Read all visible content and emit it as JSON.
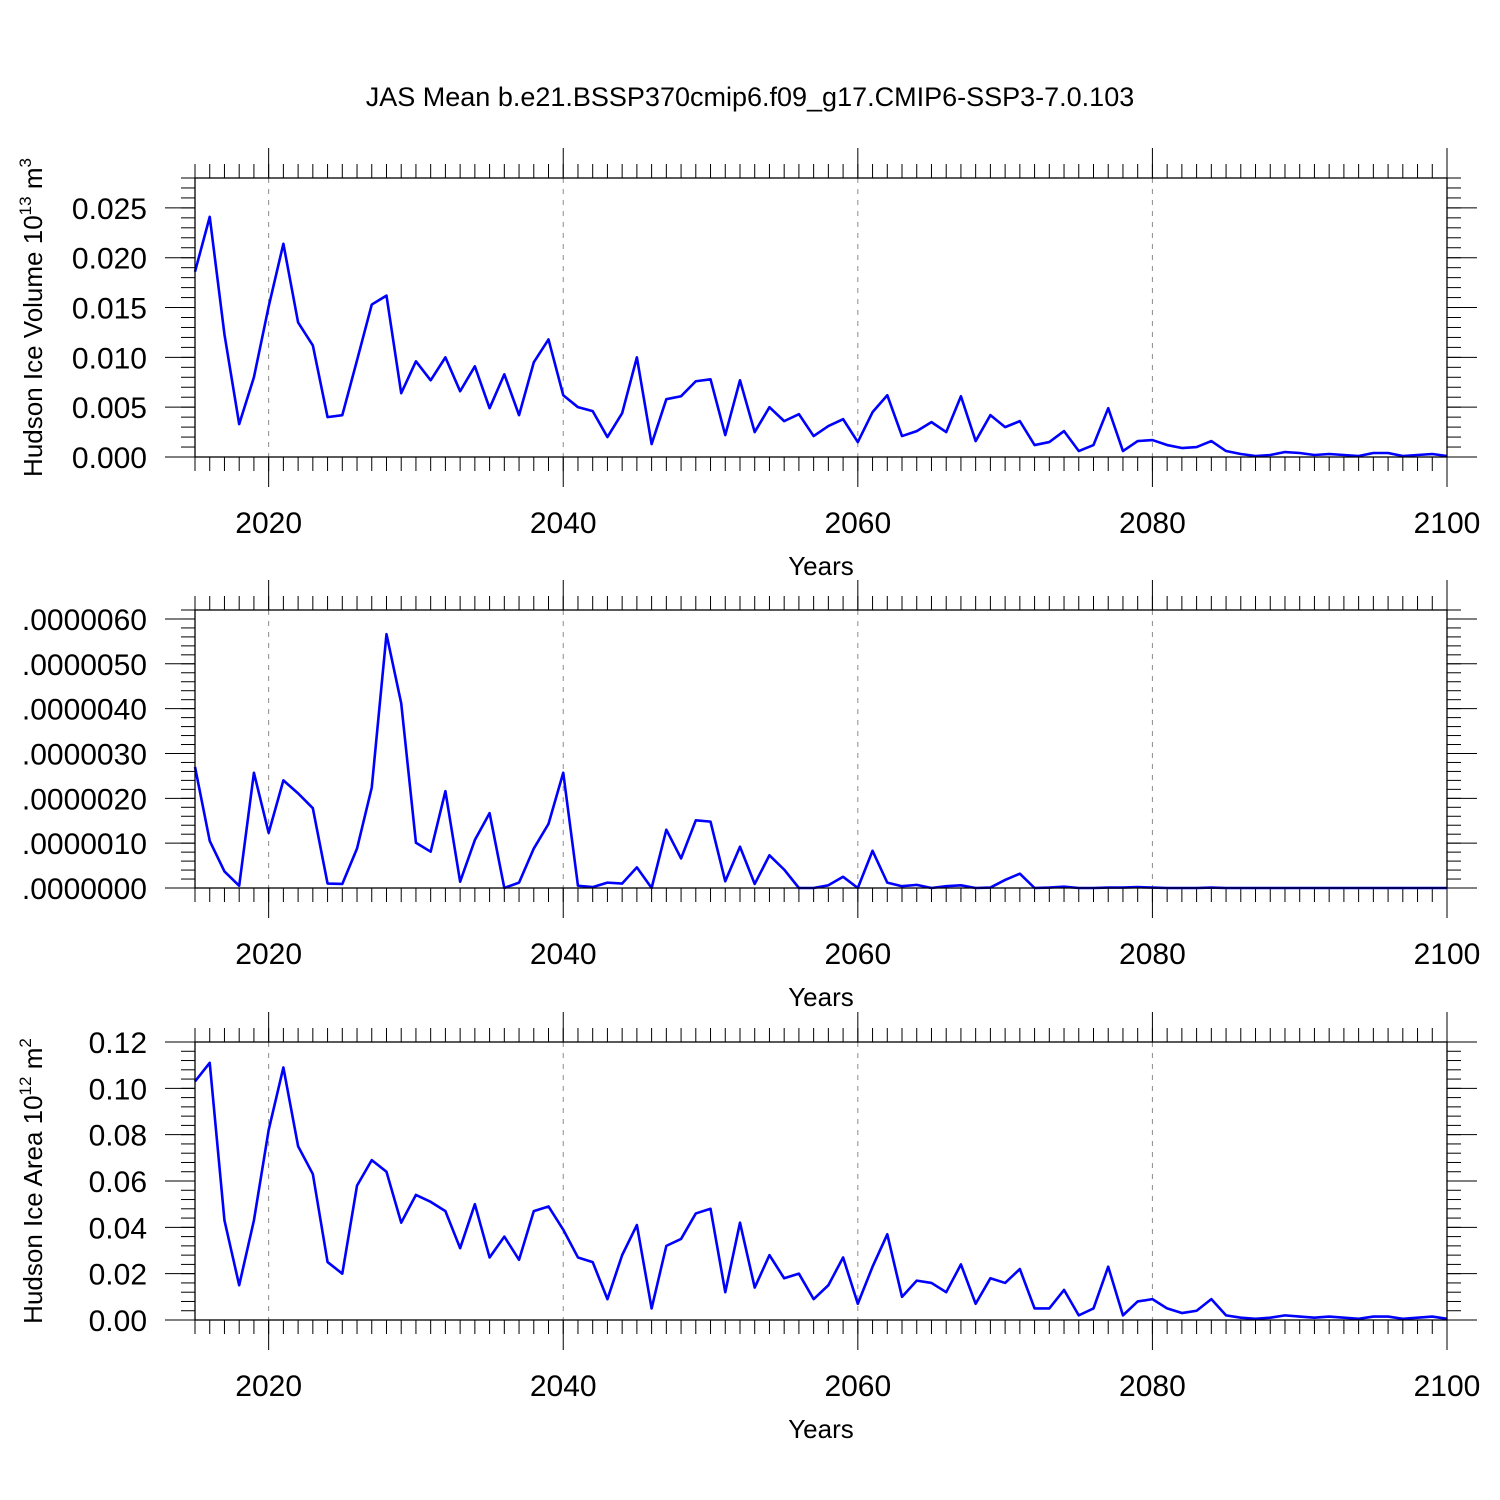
{
  "chart_data": {
    "title": "JAS Mean b.e21.BSSP370cmip6.f09_g17.CMIP6-SSP3-7.0.103",
    "type": "line",
    "line_color": "#0000ff",
    "x": [
      2015,
      2016,
      2017,
      2018,
      2019,
      2020,
      2021,
      2022,
      2023,
      2024,
      2025,
      2026,
      2027,
      2028,
      2029,
      2030,
      2031,
      2032,
      2033,
      2034,
      2035,
      2036,
      2037,
      2038,
      2039,
      2040,
      2041,
      2042,
      2043,
      2044,
      2045,
      2046,
      2047,
      2048,
      2049,
      2050,
      2051,
      2052,
      2053,
      2054,
      2055,
      2056,
      2057,
      2058,
      2059,
      2060,
      2061,
      2062,
      2063,
      2064,
      2065,
      2066,
      2067,
      2068,
      2069,
      2070,
      2071,
      2072,
      2073,
      2074,
      2075,
      2076,
      2077,
      2078,
      2079,
      2080,
      2081,
      2082,
      2083,
      2084,
      2085,
      2086,
      2087,
      2088,
      2089,
      2090,
      2091,
      2092,
      2093,
      2094,
      2095,
      2096,
      2097,
      2098,
      2099,
      2100
    ],
    "panels": [
      {
        "ylabel": "Hudson Ice Volume 10",
        "ylabel_sup": "13",
        "ylabel_unit": " m",
        "ylabel_unit_sup": "3",
        "xlabel": "Years",
        "xlim": [
          2015,
          2100
        ],
        "ylim": [
          0.0,
          0.028
        ],
        "yticks": [
          0.0,
          0.005,
          0.01,
          0.015,
          0.02,
          0.025
        ],
        "yticklabels": [
          "0.000",
          "0.005",
          "0.010",
          "0.015",
          "0.020",
          "0.025"
        ],
        "yminor_step": 0.001,
        "xticks": [
          2020,
          2040,
          2060,
          2080,
          2100
        ],
        "xticklabels": [
          "2020",
          "2040",
          "2060",
          "2080",
          "2100"
        ],
        "xminor_step": 1,
        "grid_x": true,
        "values": [
          0.0186,
          0.0241,
          0.0123,
          0.0033,
          0.008,
          0.0151,
          0.0214,
          0.0135,
          0.0112,
          0.004,
          0.0042,
          0.0097,
          0.0153,
          0.0162,
          0.0064,
          0.0096,
          0.0077,
          0.01,
          0.0066,
          0.0091,
          0.0049,
          0.0083,
          0.0042,
          0.0095,
          0.0118,
          0.0062,
          0.005,
          0.0046,
          0.002,
          0.0044,
          0.01,
          0.0013,
          0.0058,
          0.0061,
          0.0076,
          0.0078,
          0.0022,
          0.0077,
          0.0025,
          0.005,
          0.0036,
          0.0043,
          0.0021,
          0.0031,
          0.0038,
          0.0015,
          0.0045,
          0.0062,
          0.0021,
          0.0026,
          0.0035,
          0.0025,
          0.0061,
          0.0016,
          0.0042,
          0.003,
          0.0036,
          0.0012,
          0.0015,
          0.0026,
          0.0006,
          0.0012,
          0.0049,
          0.0006,
          0.0016,
          0.0017,
          0.0012,
          0.0009,
          0.001,
          0.0016,
          0.0006,
          0.0003,
          0.0001,
          0.0002,
          0.0005,
          0.0004,
          0.0002,
          0.0003,
          0.0002,
          0.0001,
          0.0004,
          0.0004,
          0.0001,
          0.0002,
          0.0003,
          0.0001
        ]
      },
      {
        "ylabel": "",
        "xlabel": "Years",
        "xlim": [
          2015,
          2100
        ],
        "ylim": [
          0.0,
          6.2e-06
        ],
        "yticks": [
          0.0,
          1e-06,
          2e-06,
          3e-06,
          4e-06,
          5e-06,
          6e-06
        ],
        "yticklabels": [
          ".0000000",
          ".0000010",
          ".0000020",
          ".0000030",
          ".0000040",
          ".0000050",
          ".0000060"
        ],
        "yminor_step": 2e-07,
        "xticks": [
          2020,
          2040,
          2060,
          2080,
          2100
        ],
        "xticklabels": [
          "2020",
          "2040",
          "2060",
          "2080",
          "2100"
        ],
        "xminor_step": 1,
        "grid_x": true,
        "values": [
          2.7e-06,
          1.05e-06,
          3.7e-07,
          5e-08,
          2.57e-06,
          1.23e-06,
          2.4e-06,
          2.11e-06,
          1.78e-06,
          1e-07,
          9e-08,
          8.8e-07,
          2.24e-06,
          5.66e-06,
          4.12e-06,
          1.01e-06,
          8.1e-07,
          2.16e-06,
          1.4e-07,
          1.07e-06,
          1.67e-06,
          0.0,
          1.2e-07,
          8.8e-07,
          1.43e-06,
          2.57e-06,
          5e-08,
          2e-08,
          1.2e-07,
          1e-07,
          4.6e-07,
          0.0,
          1.3e-06,
          6.6e-07,
          1.51e-06,
          1.48e-06,
          1.5e-07,
          9.2e-07,
          9e-08,
          7.3e-07,
          4.1e-07,
          0.0,
          0.0,
          6e-08,
          2.5e-07,
          0.0,
          8.3e-07,
          1.2e-07,
          4e-08,
          7e-08,
          0.0,
          4e-08,
          6e-08,
          0.0,
          1e-08,
          1.8e-07,
          3.2e-07,
          0.0,
          1e-08,
          3e-08,
          0.0,
          0.0,
          1e-08,
          1e-08,
          2e-08,
          1e-08,
          0.0,
          0.0,
          0.0,
          1e-08,
          0.0,
          0.0,
          0.0,
          0.0,
          0.0,
          0.0,
          0.0,
          0.0,
          0.0,
          0.0,
          0.0,
          0.0,
          0.0,
          0.0,
          0.0,
          0.0
        ]
      },
      {
        "ylabel": "Hudson Ice Area 10",
        "ylabel_sup": "12",
        "ylabel_unit": " m",
        "ylabel_unit_sup": "2",
        "xlabel": "Years",
        "xlim": [
          2015,
          2100
        ],
        "ylim": [
          0.0,
          0.12
        ],
        "yticks": [
          0.0,
          0.02,
          0.04,
          0.06,
          0.08,
          0.1,
          0.12
        ],
        "yticklabels": [
          "0.00",
          "0.02",
          "0.04",
          "0.06",
          "0.08",
          "0.10",
          "0.12"
        ],
        "yminor_step": 0.004,
        "xticks": [
          2020,
          2040,
          2060,
          2080,
          2100
        ],
        "xticklabels": [
          "2020",
          "2040",
          "2060",
          "2080",
          "2100"
        ],
        "xminor_step": 1,
        "grid_x": true,
        "values": [
          0.103,
          0.111,
          0.043,
          0.015,
          0.043,
          0.082,
          0.109,
          0.075,
          0.063,
          0.025,
          0.02,
          0.058,
          0.069,
          0.064,
          0.042,
          0.054,
          0.051,
          0.047,
          0.031,
          0.05,
          0.027,
          0.036,
          0.026,
          0.047,
          0.049,
          0.039,
          0.027,
          0.025,
          0.009,
          0.028,
          0.041,
          0.005,
          0.032,
          0.035,
          0.046,
          0.048,
          0.012,
          0.042,
          0.014,
          0.028,
          0.018,
          0.02,
          0.009,
          0.015,
          0.027,
          0.007,
          0.023,
          0.037,
          0.01,
          0.017,
          0.016,
          0.012,
          0.024,
          0.007,
          0.018,
          0.016,
          0.022,
          0.005,
          0.005,
          0.013,
          0.002,
          0.005,
          0.023,
          0.002,
          0.008,
          0.009,
          0.005,
          0.003,
          0.004,
          0.009,
          0.002,
          0.001,
          0.0005,
          0.001,
          0.002,
          0.0015,
          0.001,
          0.0015,
          0.001,
          0.0005,
          0.0015,
          0.0015,
          0.0005,
          0.001,
          0.0015,
          0.0005
        ]
      }
    ]
  }
}
